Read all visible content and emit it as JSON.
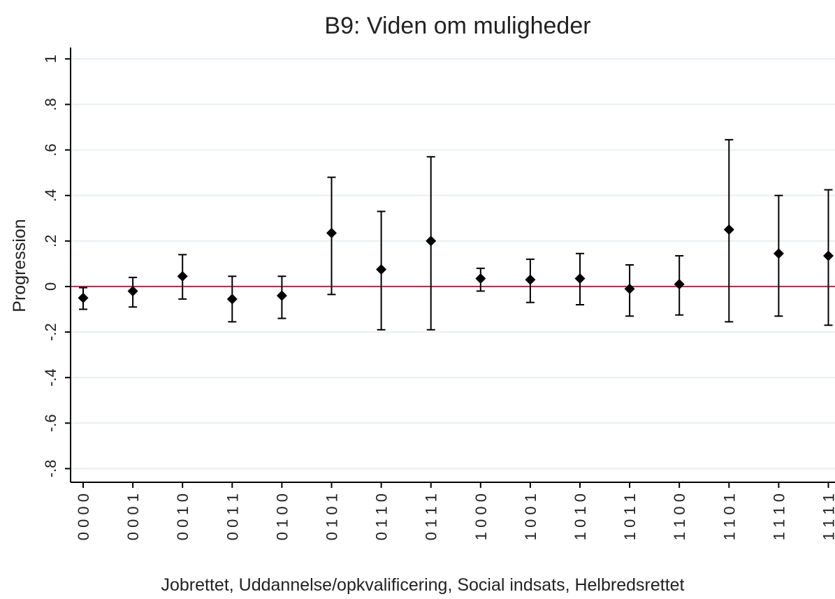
{
  "chart_data": {
    "type": "errorbar",
    "title": "B9: Viden om muligheder",
    "x_label": "Jobrettet, Uddannelse/opkvalificering, Social indsats, Helbredsrettet",
    "y_label": "Progression",
    "categories": [
      "0 0 0 0",
      "0 0 0 1",
      "0 0 1 0",
      "0 0 1 1",
      "0 1 0 0",
      "0 1 0 1",
      "0 1 1 0",
      "0 1 1 1",
      "1 0 0 0",
      "1 0 0 1",
      "1 0 1 0",
      "1 0 1 1",
      "1 1 0 0",
      "1 1 0 1",
      "1 1 1 0",
      "1 1 1 1"
    ],
    "series": [
      {
        "color": "#000000",
        "values": [
          -0.05,
          -0.02,
          0.045,
          -0.055,
          -0.04,
          0.235,
          0.075,
          0.2,
          0.035,
          0.03,
          0.035,
          -0.01,
          0.01,
          0.25,
          0.145,
          0.135
        ],
        "low": [
          -0.1,
          -0.09,
          -0.055,
          -0.155,
          -0.14,
          -0.035,
          -0.19,
          -0.19,
          -0.02,
          -0.07,
          -0.08,
          -0.13,
          -0.125,
          -0.155,
          -0.13,
          -0.17
        ],
        "high": [
          -0.005,
          0.04,
          0.14,
          0.045,
          0.045,
          0.48,
          0.33,
          0.57,
          0.08,
          0.12,
          0.145,
          0.095,
          0.135,
          0.645,
          0.4,
          0.425
        ]
      }
    ],
    "ylim": [
      -0.86,
      1.05
    ],
    "yticks": [
      {
        "value": -0.8,
        "label": "-.8"
      },
      {
        "value": -0.6,
        "label": "-.6"
      },
      {
        "value": -0.4,
        "label": "-.4"
      },
      {
        "value": -0.2,
        "label": "-.2"
      },
      0,
      {
        "value": 0.2,
        "label": ".2"
      },
      {
        "value": 0.4,
        "label": ".4"
      },
      {
        "value": 0.6,
        "label": ".6"
      },
      {
        "value": 0.8,
        "label": ".8"
      },
      1
    ],
    "grid": true,
    "reference_line": {
      "value": 0,
      "color": "#c0204e"
    }
  }
}
